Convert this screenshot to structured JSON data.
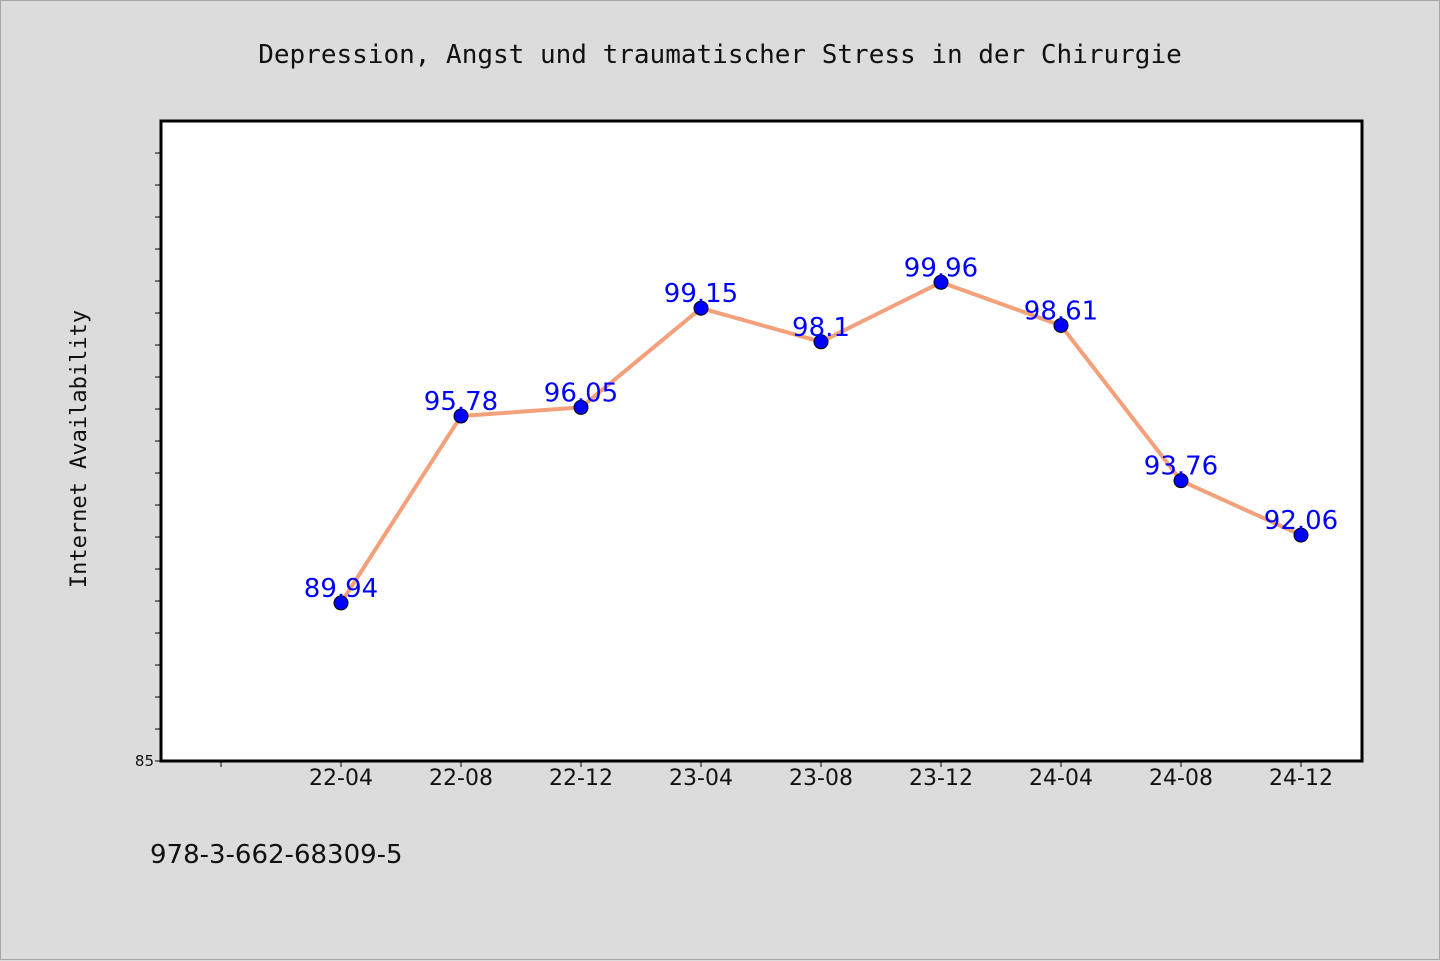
{
  "chart_data": {
    "type": "line",
    "title": "Depression, Angst und traumatischer Stress in der Chirurgie",
    "ylabel": "Internet Availability",
    "xlabel": "",
    "categories": [
      "22-04",
      "22-08",
      "22-12",
      "23-04",
      "23-08",
      "23-12",
      "24-04",
      "24-08",
      "24-12"
    ],
    "series": [
      {
        "values": [
          89.94,
          95.78,
          96.05,
          99.15,
          98.1,
          99.96,
          98.61,
          93.76,
          92.06
        ]
      }
    ],
    "ylim": [
      85,
      105
    ],
    "y_tick_labels": [
      "85"
    ],
    "grid": false,
    "colors": {
      "line": "#f4a07a",
      "marker": "#0000ff",
      "label": "#0000ff"
    }
  },
  "footer": {
    "text": "978-3-662-68309-5"
  }
}
